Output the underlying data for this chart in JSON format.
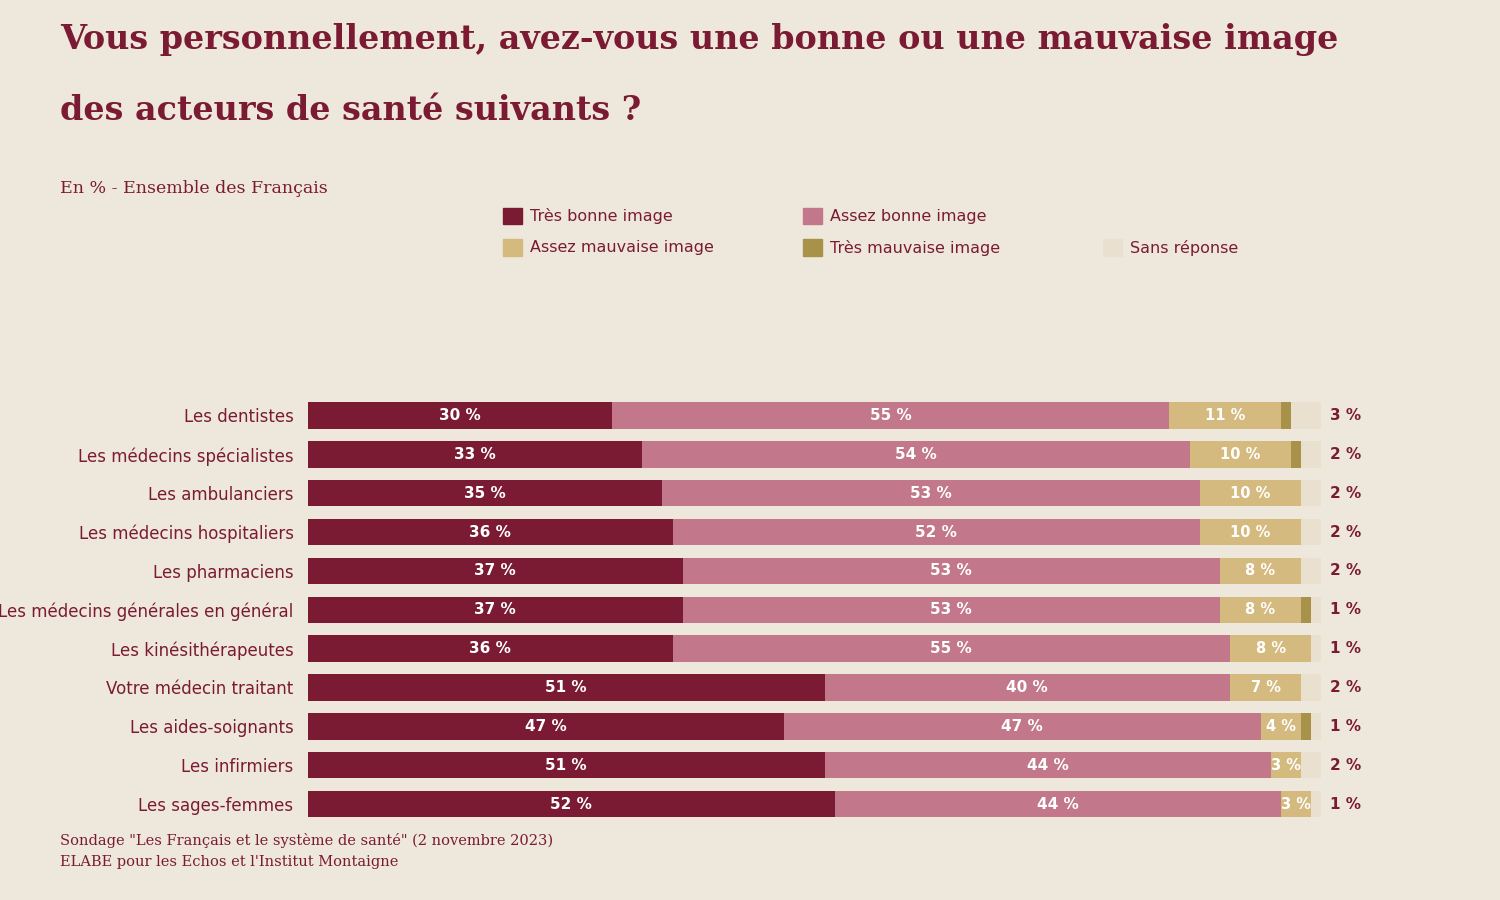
{
  "title_line1": "Vous personnellement, avez-vous une bonne ou une mauvaise image",
  "title_line2": "des acteurs de santé suivants ?",
  "subtitle": "En % - Ensemble des Français",
  "footnote": "Sondage \"Les Français et le système de santé\" (2 novembre 2023)\nELABE pour les Echos et l'Institut Montaigne",
  "categories": [
    "Les sages-femmes",
    "Les infirmiers",
    "Les aides-soignants",
    "Votre médecin traitant",
    "Les kinésithérapeutes",
    "Les médecins générales en général",
    "Les pharmaciens",
    "Les médecins hospitaliers",
    "Les ambulanciers",
    "Les médecins spécialistes",
    "Les dentistes"
  ],
  "data": {
    "tres_bonne": [
      52,
      51,
      47,
      51,
      36,
      37,
      37,
      36,
      35,
      33,
      30
    ],
    "assez_bonne": [
      44,
      44,
      47,
      40,
      55,
      53,
      53,
      52,
      53,
      54,
      55
    ],
    "assez_mauvaise": [
      3,
      3,
      4,
      7,
      8,
      8,
      8,
      10,
      10,
      10,
      11
    ],
    "tres_mauvaise": [
      0,
      0,
      1,
      0,
      0,
      1,
      0,
      0,
      0,
      1,
      1
    ],
    "sans_reponse": [
      1,
      2,
      1,
      2,
      1,
      1,
      2,
      2,
      2,
      2,
      3
    ]
  },
  "colors": {
    "tres_bonne": "#7B1B33",
    "assez_bonne": "#C2788A",
    "assez_mauvaise": "#D4BA7E",
    "tres_mauvaise": "#A8924A",
    "sans_reponse": "#EAE0D0"
  },
  "legend_labels": {
    "tres_bonne": "Très bonne image",
    "assez_bonne": "Assez bonne image",
    "assez_mauvaise": "Assez mauvaise image",
    "tres_mauvaise": "Très mauvaise image",
    "sans_reponse": "Sans réponse"
  },
  "background_color": "#EEE8DC",
  "title_color": "#7B1B33",
  "text_color": "#7B1B33"
}
